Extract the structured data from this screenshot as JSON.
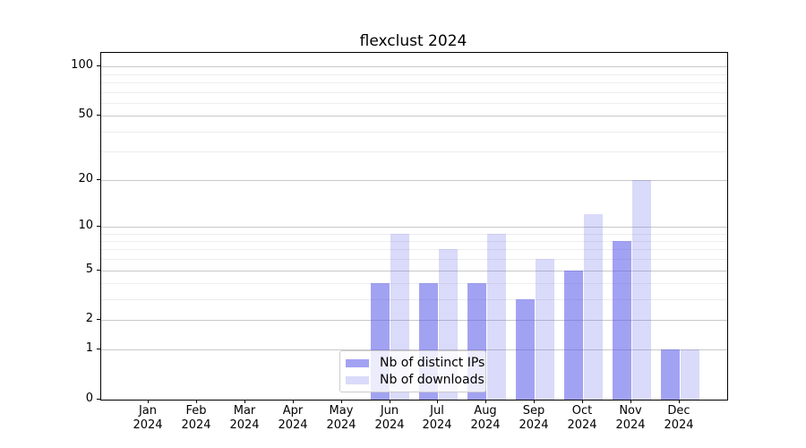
{
  "chart_data": {
    "type": "bar",
    "title": "flexclust 2024",
    "categories": [
      "Jan",
      "Feb",
      "Mar",
      "Apr",
      "May",
      "Jun",
      "Jul",
      "Aug",
      "Sep",
      "Oct",
      "Nov",
      "Dec"
    ],
    "x_tick_year": "2024",
    "series": [
      {
        "name": "Nb of distinct IPs",
        "color": "#a2a2f1",
        "values": [
          0,
          0,
          0,
          0,
          0,
          4,
          4,
          4,
          3,
          5,
          8,
          1
        ]
      },
      {
        "name": "Nb of downloads",
        "color": "#dadaf9",
        "values": [
          0,
          0,
          0,
          0,
          0,
          9,
          7,
          9,
          6,
          12,
          20,
          1
        ]
      }
    ],
    "y_axis": {
      "scale": "log1p",
      "major_ticks": [
        0,
        1,
        2,
        5,
        10,
        20,
        50,
        100
      ],
      "minor_ticks": [
        3,
        4,
        6,
        7,
        8,
        9,
        30,
        40,
        60,
        70,
        80,
        90
      ],
      "ylim": [
        0,
        121
      ]
    },
    "xlabel": "",
    "ylabel": "",
    "grid": "on",
    "legend_position": "lower center",
    "colors": {
      "grid_major": "#c9c9c9",
      "grid_minor": "#ededed",
      "axis": "#000000"
    }
  }
}
